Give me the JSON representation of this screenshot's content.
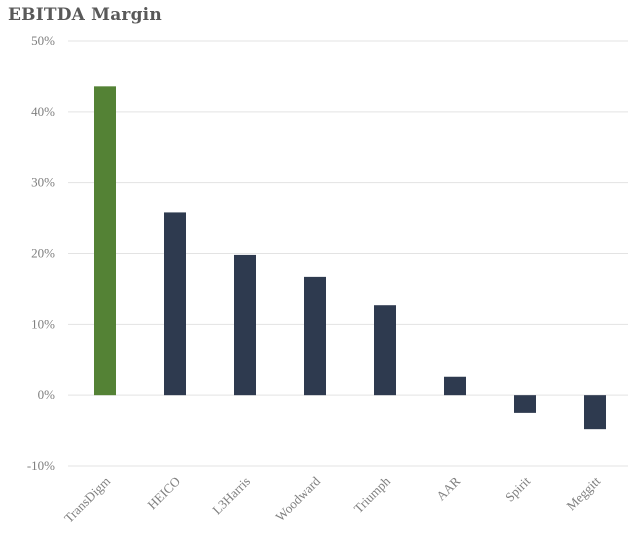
{
  "chart_data": {
    "type": "bar",
    "title": "EBITDA Margin",
    "categories": [
      "TransDigm",
      "HEICO",
      "L3Harris",
      "Woodward",
      "Triumph",
      "AAR",
      "Spirit",
      "Meggitt"
    ],
    "values": [
      43.6,
      25.8,
      19.8,
      16.7,
      12.7,
      2.6,
      -2.5,
      -4.8
    ],
    "highlight_index": 0,
    "ylim": [
      -10,
      50
    ],
    "yticks": [
      50,
      40,
      30,
      20,
      10,
      0,
      -10
    ],
    "ytick_labels": [
      "50%",
      "40%",
      "30%",
      "20%",
      "10%",
      "0%",
      "-10%"
    ],
    "xlabel": "",
    "ylabel": "",
    "grid": true,
    "legend": "none",
    "colors": {
      "highlight": "#548235",
      "default": "#2e3a4f"
    }
  }
}
